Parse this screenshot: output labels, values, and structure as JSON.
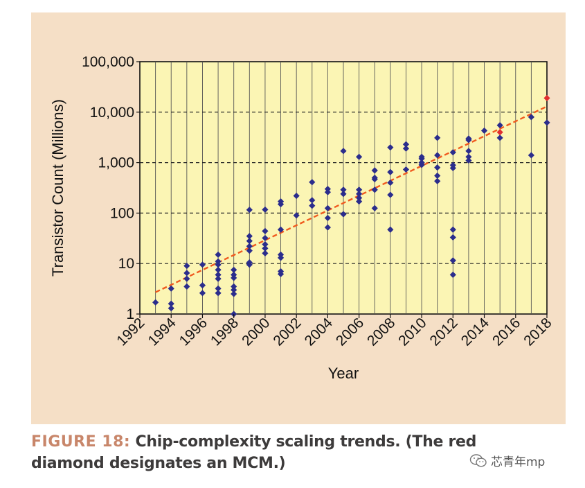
{
  "chart_data": {
    "type": "scatter",
    "title": "",
    "xlabel": "Year",
    "ylabel": "Transistor Count (Millions)",
    "xlim": [
      1992,
      2018
    ],
    "ylim": [
      1,
      100000
    ],
    "y_scale": "log",
    "x_ticks": [
      "1992",
      "1994",
      "1996",
      "1998",
      "2000",
      "2002",
      "2004",
      "2006",
      "2008",
      "2010",
      "2012",
      "2014",
      "2016",
      "2018"
    ],
    "y_ticks": [
      "1",
      "10",
      "100",
      "1,000",
      "10,000",
      "100,000"
    ],
    "grid": {
      "vertical": true,
      "horizontal_dashed": true
    },
    "colors": {
      "points": "#2b2d8c",
      "mcm": "#e03030",
      "trend": "#f05a1e",
      "plot_bg": "#fbf5b4",
      "figure_bg": "#f5dfc6"
    },
    "series": [
      {
        "marker": "diamond",
        "points": [
          [
            1993,
            1.7
          ],
          [
            1994,
            1.3
          ],
          [
            1994,
            1.6
          ],
          [
            1994,
            3.2
          ],
          [
            1995,
            3.5
          ],
          [
            1995,
            5
          ],
          [
            1995,
            6.5
          ],
          [
            1995,
            9
          ],
          [
            1996,
            2.6
          ],
          [
            1996,
            3.7
          ],
          [
            1996,
            9.5
          ],
          [
            1997,
            2.6
          ],
          [
            1997,
            3.2
          ],
          [
            1997,
            5
          ],
          [
            1997,
            6
          ],
          [
            1997,
            7.5
          ],
          [
            1997,
            9.5
          ],
          [
            1997,
            11
          ],
          [
            1997,
            15
          ],
          [
            1998,
            1
          ],
          [
            1998,
            2.5
          ],
          [
            1998,
            3
          ],
          [
            1998,
            3.5
          ],
          [
            1998,
            5.2
          ],
          [
            1998,
            6
          ],
          [
            1998,
            7.5
          ],
          [
            1999,
            9.5
          ],
          [
            1999,
            10.5
          ],
          [
            1999,
            18
          ],
          [
            1999,
            22
          ],
          [
            1999,
            28
          ],
          [
            1999,
            35
          ],
          [
            1999,
            116
          ],
          [
            2000,
            16
          ],
          [
            2000,
            20
          ],
          [
            2000,
            24
          ],
          [
            2000,
            32
          ],
          [
            2000,
            44
          ],
          [
            2000,
            117
          ],
          [
            2001,
            6.2
          ],
          [
            2001,
            7
          ],
          [
            2001,
            13
          ],
          [
            2001,
            15
          ],
          [
            2001,
            47
          ],
          [
            2001,
            150
          ],
          [
            2001,
            170
          ],
          [
            2002,
            90
          ],
          [
            2002,
            220
          ],
          [
            2003,
            140
          ],
          [
            2003,
            180
          ],
          [
            2003,
            410
          ],
          [
            2004,
            52
          ],
          [
            2004,
            80
          ],
          [
            2004,
            125
          ],
          [
            2004,
            260
          ],
          [
            2004,
            300
          ],
          [
            2005,
            95
          ],
          [
            2005,
            240
          ],
          [
            2005,
            290
          ],
          [
            2005,
            1700
          ],
          [
            2006,
            170
          ],
          [
            2006,
            200
          ],
          [
            2006,
            240
          ],
          [
            2006,
            290
          ],
          [
            2006,
            1300
          ],
          [
            2007,
            125
          ],
          [
            2007,
            290
          ],
          [
            2007,
            470
          ],
          [
            2007,
            500
          ],
          [
            2007,
            700
          ],
          [
            2008,
            47
          ],
          [
            2008,
            230
          ],
          [
            2008,
            400
          ],
          [
            2008,
            650
          ],
          [
            2008,
            2000
          ],
          [
            2009,
            730
          ],
          [
            2009,
            1900
          ],
          [
            2009,
            2300
          ],
          [
            2010,
            900
          ],
          [
            2010,
            1000
          ],
          [
            2010,
            1200
          ],
          [
            2010,
            1300
          ],
          [
            2011,
            430
          ],
          [
            2011,
            550
          ],
          [
            2011,
            800
          ],
          [
            2011,
            1400
          ],
          [
            2011,
            3100
          ],
          [
            2012,
            6
          ],
          [
            2012,
            11.5
          ],
          [
            2012,
            33
          ],
          [
            2012,
            47
          ],
          [
            2012,
            780
          ],
          [
            2012,
            890
          ],
          [
            2012,
            1600
          ],
          [
            2013,
            1100
          ],
          [
            2013,
            1300
          ],
          [
            2013,
            1700
          ],
          [
            2013,
            2800
          ],
          [
            2013,
            3000
          ],
          [
            2014,
            4300
          ],
          [
            2015,
            3100
          ],
          [
            2015,
            5500
          ],
          [
            2017,
            1400
          ],
          [
            2017,
            8000
          ],
          [
            2018,
            6200
          ]
        ]
      },
      {
        "marker": "diamond",
        "points": [
          [
            2015,
            4000
          ],
          [
            2018,
            19000
          ]
        ]
      },
      {
        "style": "dashed-line",
        "points": [
          [
            1993,
            2.7
          ],
          [
            2018,
            13000
          ]
        ]
      }
    ]
  },
  "caption": {
    "label": "FIGURE 18:",
    "text": " Chip-complexity scaling trends. (The red diamond designates an MCM.)"
  },
  "watermark": {
    "icon": "wechat-icon",
    "text": "芯青年mp"
  }
}
